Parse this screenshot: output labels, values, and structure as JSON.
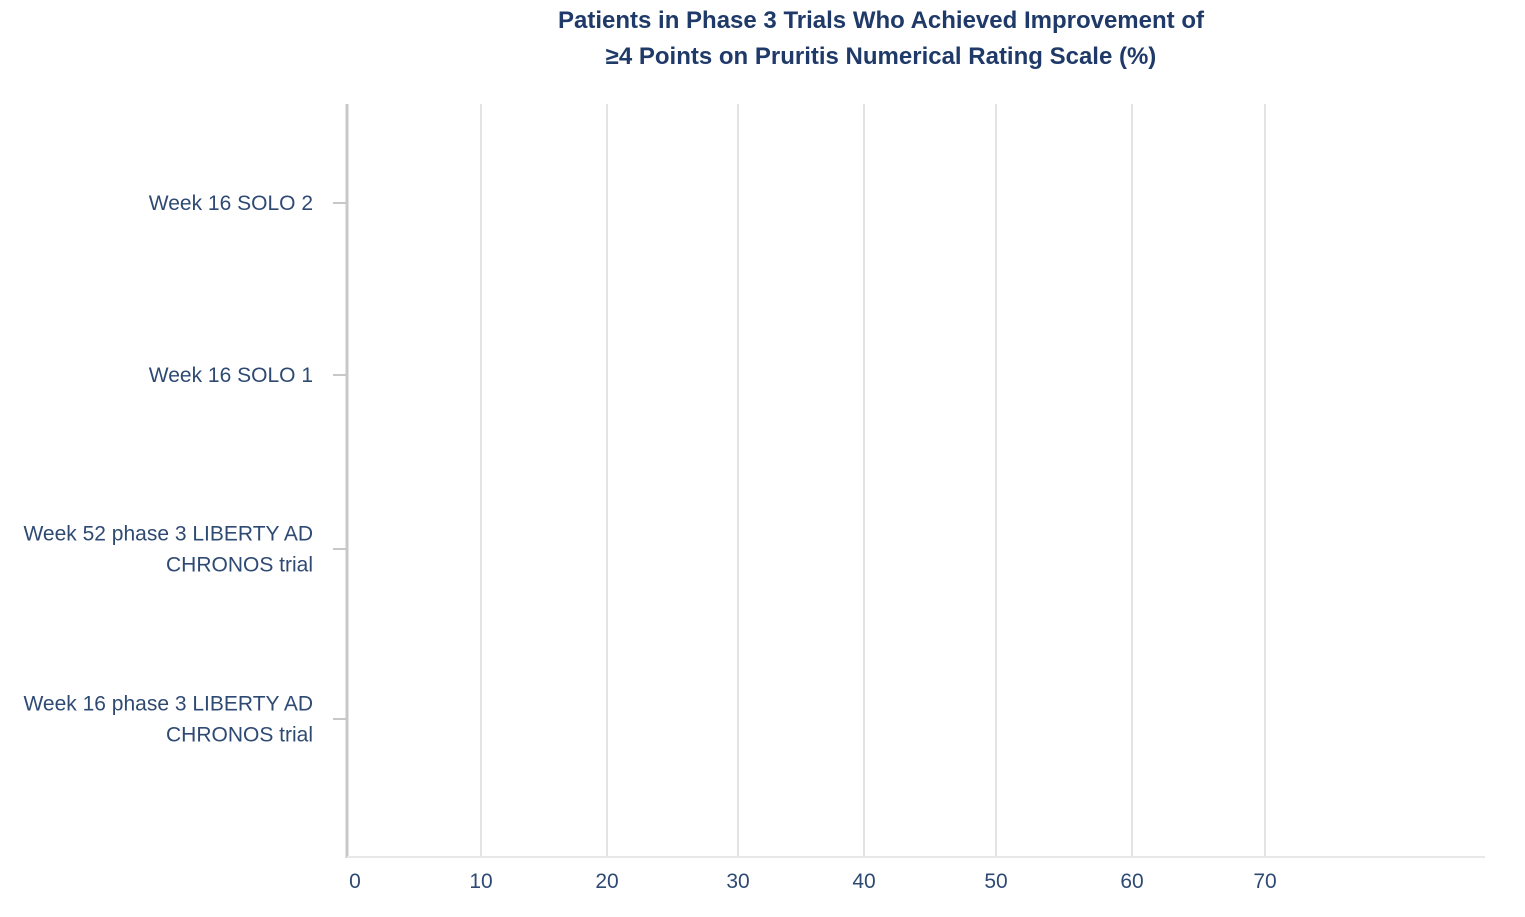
{
  "chart_data": {
    "type": "bar",
    "orientation": "horizontal",
    "title_lines": [
      "Patients in Phase 3 Trials Who Achieved Improvement of",
      "≥4 Points on Pruritis Numerical Rating Scale (%)"
    ],
    "categories": [
      [
        "Week 16 SOLO 2"
      ],
      [
        "Week 16 SOLO 1"
      ],
      [
        "Week 52 phase 3 LIBERTY AD",
        "CHRONOS trial"
      ],
      [
        "Week 16 phase 3 LIBERTY AD",
        "CHRONOS trial"
      ]
    ],
    "values": [
      null,
      null,
      null,
      null
    ],
    "xticks": [
      "0",
      "10",
      "20",
      "30",
      "40",
      "50",
      "60",
      "70"
    ],
    "xlim": [
      0,
      70
    ],
    "grid": "vertical",
    "colors": {
      "title": "#1f3a68",
      "labels": "#2e4a73",
      "grid": "#e3e3e3",
      "axis": "#c8c8c8"
    }
  }
}
